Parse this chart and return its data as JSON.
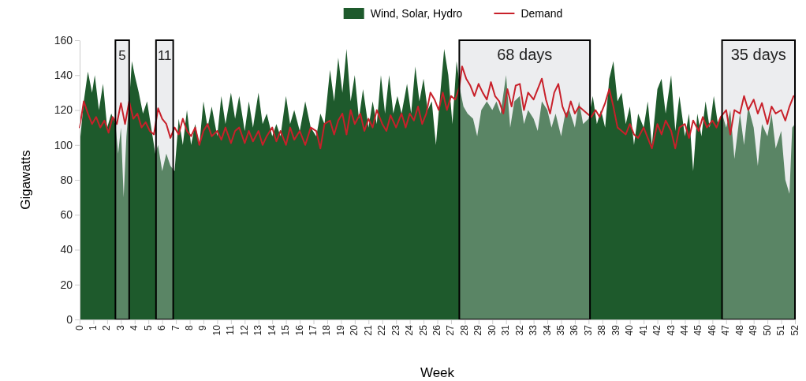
{
  "chart_data": {
    "type": "area",
    "xlabel": "Week",
    "ylabel": "Gigawatts",
    "xlim": [
      0,
      52
    ],
    "xticks": [
      0,
      1,
      2,
      3,
      4,
      5,
      6,
      7,
      8,
      9,
      10,
      11,
      12,
      13,
      14,
      15,
      16,
      17,
      18,
      19,
      20,
      21,
      22,
      23,
      24,
      25,
      26,
      27,
      28,
      29,
      30,
      31,
      32,
      33,
      34,
      35,
      36,
      37,
      38,
      39,
      40,
      41,
      42,
      43,
      44,
      45,
      46,
      47,
      48,
      49,
      50,
      51,
      52
    ],
    "ylim": [
      0,
      160
    ],
    "yticks": [
      0,
      20,
      40,
      60,
      80,
      100,
      120,
      140,
      160
    ],
    "legend": "top",
    "series": [
      {
        "name": "Wind, Solar, Hydro",
        "color": "#1e5a2c",
        "x": [
          0,
          0.3,
          0.6,
          0.9,
          1.1,
          1.4,
          1.7,
          2.0,
          2.3,
          2.6,
          2.8,
          3.0,
          3.2,
          3.4,
          3.6,
          3.8,
          4.0,
          4.3,
          4.6,
          4.9,
          5.2,
          5.5,
          5.7,
          6.0,
          6.3,
          6.6,
          6.9,
          7.2,
          7.5,
          7.8,
          8.1,
          8.4,
          8.7,
          9.0,
          9.3,
          9.6,
          10.0,
          10.3,
          10.6,
          11.0,
          11.3,
          11.6,
          12.0,
          12.3,
          12.6,
          13.0,
          13.3,
          13.6,
          14.0,
          14.3,
          14.6,
          15.0,
          15.3,
          15.6,
          16.0,
          16.4,
          16.8,
          17.2,
          17.5,
          17.8,
          18.2,
          18.5,
          18.8,
          19.1,
          19.4,
          19.7,
          20.0,
          20.3,
          20.6,
          21.0,
          21.3,
          21.6,
          21.9,
          22.2,
          22.5,
          22.8,
          23.1,
          23.4,
          23.8,
          24.1,
          24.4,
          24.7,
          25.0,
          25.3,
          25.6,
          25.9,
          26.2,
          26.5,
          26.8,
          27.1,
          27.4,
          27.7,
          27.9,
          28.2,
          28.6,
          28.9,
          29.2,
          29.6,
          30.0,
          30.3,
          30.6,
          31.0,
          31.3,
          31.6,
          32.0,
          32.3,
          32.6,
          33.0,
          33.3,
          33.6,
          34.0,
          34.3,
          34.6,
          35.0,
          35.3,
          35.6,
          36.0,
          36.3,
          36.6,
          37.0,
          37.3,
          37.6,
          37.9,
          38.2,
          38.5,
          38.8,
          39.1,
          39.4,
          39.7,
          40.0,
          40.3,
          40.6,
          41.0,
          41.3,
          41.6,
          42.0,
          42.3,
          42.6,
          43.0,
          43.3,
          43.6,
          44.0,
          44.3,
          44.6,
          44.9,
          45.2,
          45.5,
          45.8,
          46.1,
          46.4,
          46.7,
          47.0,
          47.3,
          47.6,
          48.0,
          48.3,
          48.6,
          49.0,
          49.3,
          49.6,
          50.0,
          50.3,
          50.6,
          51.0,
          51.3,
          51.6,
          51.8,
          52.0
        ],
        "values": [
          100,
          125,
          142,
          130,
          140,
          120,
          135,
          110,
          118,
          112,
          95,
          110,
          70,
          105,
          125,
          148,
          140,
          130,
          118,
          125,
          110,
          95,
          100,
          85,
          95,
          88,
          85,
          115,
          100,
          120,
          100,
          112,
          100,
          125,
          110,
          122,
          105,
          128,
          112,
          130,
          115,
          128,
          108,
          125,
          110,
          130,
          112,
          118,
          105,
          112,
          105,
          128,
          112,
          120,
          108,
          125,
          110,
          105,
          118,
          112,
          143,
          125,
          150,
          130,
          155,
          125,
          140,
          115,
          132,
          110,
          125,
          112,
          140,
          118,
          140,
          118,
          128,
          118,
          135,
          118,
          145,
          125,
          138,
          120,
          125,
          100,
          128,
          155,
          140,
          112,
          148,
          130,
          122,
          118,
          115,
          105,
          120,
          125,
          120,
          125,
          118,
          140,
          110,
          125,
          128,
          112,
          120,
          115,
          108,
          125,
          120,
          110,
          118,
          105,
          118,
          120,
          110,
          125,
          112,
          115,
          128,
          112,
          120,
          110,
          138,
          148,
          125,
          130,
          112,
          122,
          100,
          118,
          110,
          125,
          100,
          132,
          138,
          118,
          140,
          108,
          128,
          105,
          118,
          85,
          118,
          105,
          125,
          110,
          128,
          112,
          118,
          110,
          120,
          92,
          118,
          100,
          122,
          110,
          88,
          112,
          105,
          118,
          98,
          108,
          80,
          72,
          110,
          112
        ]
      },
      {
        "name": "Demand",
        "type": "line",
        "color": "#c8202a",
        "x": [
          0,
          0.3,
          0.6,
          0.9,
          1.2,
          1.5,
          1.8,
          2.1,
          2.4,
          2.7,
          3.0,
          3.3,
          3.6,
          3.9,
          4.2,
          4.5,
          4.8,
          5.1,
          5.4,
          5.7,
          6.0,
          6.3,
          6.6,
          6.9,
          7.2,
          7.5,
          7.8,
          8.1,
          8.4,
          8.7,
          9.0,
          9.3,
          9.6,
          10.0,
          10.3,
          10.6,
          11.0,
          11.3,
          11.6,
          12.0,
          12.3,
          12.6,
          13.0,
          13.3,
          13.6,
          14.0,
          14.3,
          14.6,
          15.0,
          15.3,
          15.6,
          16.0,
          16.4,
          16.8,
          17.2,
          17.5,
          17.8,
          18.2,
          18.5,
          18.8,
          19.1,
          19.4,
          19.7,
          20.0,
          20.4,
          20.7,
          21.0,
          21.3,
          21.6,
          22.0,
          22.3,
          22.6,
          23.0,
          23.4,
          23.7,
          24.0,
          24.3,
          24.6,
          24.9,
          25.2,
          25.5,
          25.8,
          26.1,
          26.4,
          26.7,
          27.0,
          27.3,
          27.6,
          27.8,
          28.1,
          28.4,
          28.7,
          29.0,
          29.3,
          29.6,
          29.9,
          30.2,
          30.5,
          30.8,
          31.1,
          31.4,
          31.7,
          32.0,
          32.3,
          32.6,
          33.0,
          33.3,
          33.6,
          33.9,
          34.2,
          34.5,
          34.8,
          35.1,
          35.4,
          35.7,
          36.0,
          36.3,
          36.6,
          36.9,
          37.2,
          37.5,
          37.8,
          38.2,
          38.5,
          38.8,
          39.1,
          39.4,
          39.7,
          40.0,
          40.3,
          40.6,
          41.0,
          41.3,
          41.6,
          42.0,
          42.3,
          42.6,
          43.0,
          43.3,
          43.6,
          44.0,
          44.3,
          44.6,
          45.0,
          45.3,
          45.6,
          46.0,
          46.3,
          46.6,
          47.0,
          47.3,
          47.6,
          48.0,
          48.3,
          48.6,
          49.0,
          49.3,
          49.6,
          50.0,
          50.3,
          50.6,
          51.0,
          51.3,
          51.6,
          51.9
        ],
        "values": [
          110,
          125,
          118,
          112,
          116,
          110,
          114,
          107,
          116,
          112,
          124,
          112,
          125,
          115,
          118,
          110,
          113,
          108,
          106,
          121,
          115,
          112,
          104,
          110,
          106,
          115,
          108,
          105,
          110,
          100,
          108,
          112,
          105,
          108,
          103,
          110,
          101,
          108,
          110,
          101,
          108,
          102,
          108,
          100,
          105,
          110,
          102,
          108,
          100,
          110,
          103,
          108,
          100,
          110,
          108,
          98,
          112,
          114,
          106,
          114,
          118,
          106,
          120,
          112,
          118,
          108,
          115,
          110,
          120,
          112,
          108,
          117,
          110,
          118,
          110,
          118,
          114,
          122,
          112,
          118,
          130,
          126,
          120,
          130,
          120,
          128,
          126,
          133,
          145,
          138,
          134,
          128,
          135,
          130,
          126,
          136,
          128,
          125,
          118,
          132,
          122,
          134,
          135,
          120,
          130,
          126,
          132,
          138,
          126,
          118,
          130,
          135,
          122,
          116,
          125,
          118,
          122,
          120,
          118,
          116,
          120,
          116,
          124,
          132,
          122,
          110,
          108,
          106,
          112,
          106,
          104,
          110,
          104,
          98,
          112,
          106,
          114,
          108,
          98,
          110,
          112,
          104,
          114,
          108,
          116,
          110,
          114,
          110,
          116,
          120,
          106,
          120,
          118,
          128,
          120,
          126,
          118,
          124,
          112,
          122,
          118,
          120,
          114,
          122,
          128
        ]
      }
    ],
    "bands": [
      {
        "axis": "x",
        "from": 2.6,
        "to": 3.6,
        "label": "5",
        "color": "#c8ccd2"
      },
      {
        "axis": "x",
        "from": 5.55,
        "to": 6.8,
        "label": "11",
        "color": "#c8ccd2"
      },
      {
        "axis": "x",
        "from": 27.6,
        "to": 37.1,
        "label": "68 days",
        "color": "#c8ccd2"
      },
      {
        "axis": "x",
        "from": 46.7,
        "to": 52,
        "label": "35 days",
        "color": "#c8ccd2"
      }
    ]
  }
}
